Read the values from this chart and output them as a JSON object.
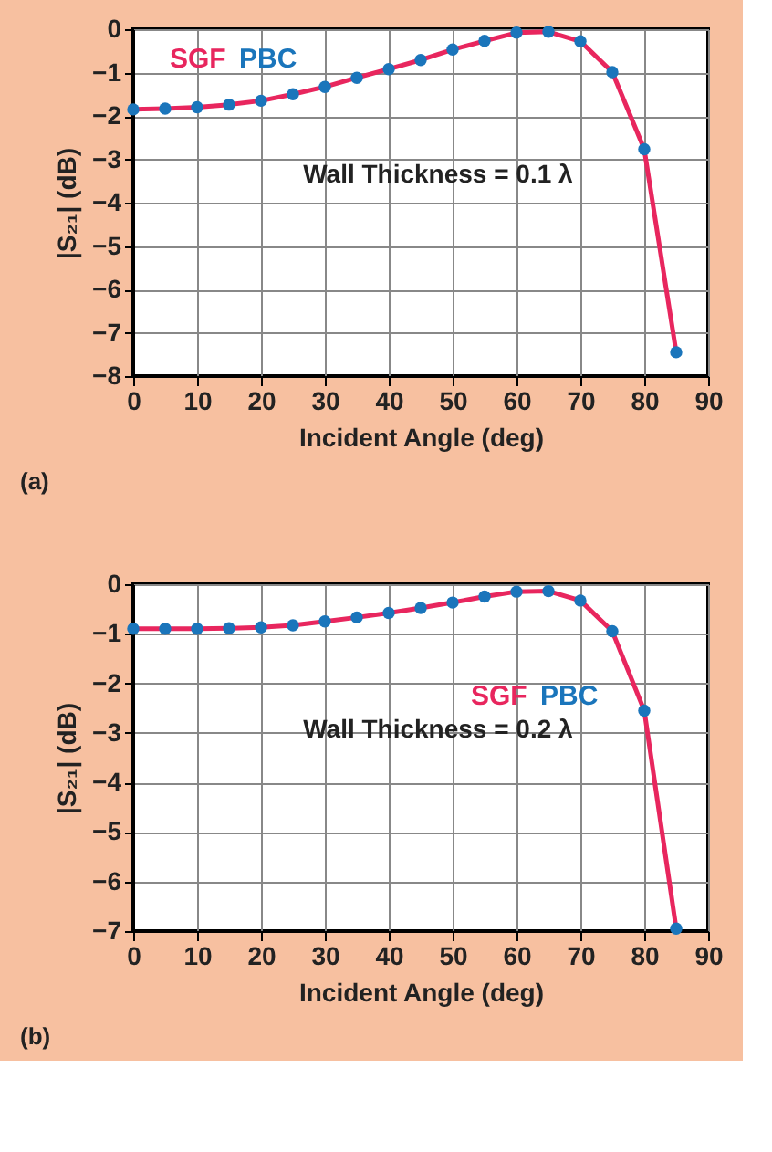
{
  "chart_data": [
    {
      "type": "line",
      "xlabel": "Incident Angle (deg)",
      "ylabel": "|S₂₁| (dB)",
      "x": [
        0,
        5,
        10,
        15,
        20,
        25,
        30,
        35,
        40,
        45,
        50,
        55,
        60,
        65,
        70,
        75,
        80,
        85
      ],
      "xlim": [
        0,
        90
      ],
      "xticks": [
        0,
        10,
        20,
        30,
        40,
        50,
        60,
        70,
        80,
        90
      ],
      "ylim": [
        -8,
        0
      ],
      "yticks": [
        0,
        -1,
        -2,
        -3,
        -4,
        -5,
        -6,
        -7,
        -8
      ],
      "grid": true,
      "legend": "top left",
      "annotations": [
        "Wall Thickness = 0.1 λ",
        "(a)"
      ],
      "series": [
        {
          "name": "SGF",
          "type": "line",
          "color": "#e8265e",
          "marker": "none",
          "values": [
            -1.85,
            -1.83,
            -1.8,
            -1.74,
            -1.65,
            -1.5,
            -1.33,
            -1.12,
            -0.92,
            -0.71,
            -0.47,
            -0.27,
            -0.08,
            -0.06,
            -0.28,
            -0.99,
            -2.77,
            -7.45
          ]
        },
        {
          "name": "PBC",
          "type": "scatter",
          "color": "#1a75bb",
          "marker": "circle",
          "values": [
            -1.85,
            -1.83,
            -1.8,
            -1.74,
            -1.65,
            -1.5,
            -1.33,
            -1.12,
            -0.92,
            -0.71,
            -0.47,
            -0.27,
            -0.08,
            -0.06,
            -0.28,
            -0.99,
            -2.77,
            -7.45
          ]
        }
      ]
    },
    {
      "type": "line",
      "xlabel": "Incident Angle (deg)",
      "ylabel": "|S₂₁| (dB)",
      "x": [
        0,
        5,
        10,
        15,
        20,
        25,
        30,
        35,
        40,
        45,
        50,
        55,
        60,
        65,
        70,
        75,
        80,
        85
      ],
      "xlim": [
        0,
        90
      ],
      "xticks": [
        0,
        10,
        20,
        30,
        40,
        50,
        60,
        70,
        80,
        90
      ],
      "ylim": [
        -7,
        0
      ],
      "yticks": [
        0,
        -1,
        -2,
        -3,
        -4,
        -5,
        -6,
        -7
      ],
      "grid": true,
      "legend": "right",
      "annotations": [
        "Wall Thickness = 0.2 λ",
        "(b)"
      ],
      "series": [
        {
          "name": "SGF",
          "type": "line",
          "color": "#e8265e",
          "marker": "none",
          "values": [
            -0.9,
            -0.9,
            -0.9,
            -0.89,
            -0.87,
            -0.83,
            -0.75,
            -0.67,
            -0.58,
            -0.48,
            -0.37,
            -0.25,
            -0.15,
            -0.14,
            -0.33,
            -0.95,
            -2.55,
            -6.95
          ]
        },
        {
          "name": "PBC",
          "type": "scatter",
          "color": "#1a75bb",
          "marker": "circle",
          "values": [
            -0.9,
            -0.9,
            -0.9,
            -0.89,
            -0.87,
            -0.83,
            -0.75,
            -0.67,
            -0.58,
            -0.48,
            -0.37,
            -0.25,
            -0.15,
            -0.14,
            -0.33,
            -0.95,
            -2.55,
            -6.95
          ]
        }
      ]
    }
  ]
}
